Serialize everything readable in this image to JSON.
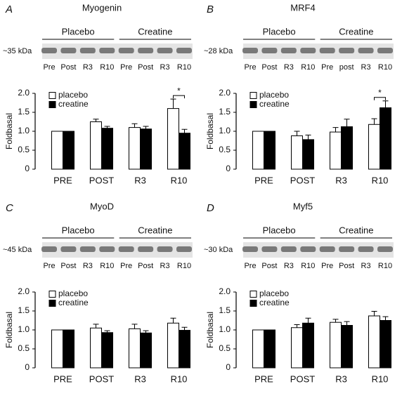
{
  "chart_data": [
    {
      "type": "bar",
      "panel_label": "A",
      "title": "Myogenin",
      "y_label": "Foldbasal",
      "blot": {
        "size_label": "~35 kDa",
        "groups": [
          "Placebo",
          "Creatine"
        ],
        "lanes": [
          "Pre",
          "Post",
          "R3",
          "R10",
          "Pre",
          "Post",
          "R3",
          "R10"
        ]
      },
      "categories": [
        "PRE",
        "POST",
        "R3",
        "R10"
      ],
      "series": [
        {
          "name": "placebo",
          "color": "#ffffff",
          "values": [
            1.0,
            1.25,
            1.1,
            1.6
          ],
          "errors": [
            0,
            0.07,
            0.1,
            0.25
          ]
        },
        {
          "name": "creatine",
          "color": "#000000",
          "values": [
            1.0,
            1.08,
            1.06,
            0.95
          ],
          "errors": [
            0,
            0.05,
            0.07,
            0.1
          ]
        }
      ],
      "ylim": [
        0,
        2
      ],
      "yticks": [
        0,
        0.5,
        {
          "value": 1,
          "label": "1.0"
        },
        1.5,
        {
          "value": 2,
          "label": "2.0"
        }
      ],
      "annotations": [
        {
          "text": "*",
          "category": "R10"
        }
      ]
    },
    {
      "type": "bar",
      "panel_label": "B",
      "title": "MRF4",
      "y_label": "Foldbasal",
      "blot": {
        "size_label": "~28 kDa",
        "groups": [
          "Placebo",
          "Creatine"
        ],
        "lanes": [
          "Pre",
          "Post",
          "R3",
          "R10",
          "Pre",
          "post",
          "R3",
          "R10"
        ]
      },
      "categories": [
        "PRE",
        "POST",
        "R3",
        "R10"
      ],
      "series": [
        {
          "name": "placebo",
          "color": "#ffffff",
          "values": [
            1.0,
            0.88,
            0.98,
            1.18
          ],
          "errors": [
            0,
            0.12,
            0.12,
            0.15
          ]
        },
        {
          "name": "creatine",
          "color": "#000000",
          "values": [
            1.0,
            0.78,
            1.12,
            1.62
          ],
          "errors": [
            0,
            0.12,
            0.2,
            0.18
          ]
        }
      ],
      "ylim": [
        0,
        2
      ],
      "yticks": [
        0,
        0.5,
        {
          "value": 1,
          "label": "1.0"
        },
        1.5,
        {
          "value": 2,
          "label": "2.0"
        }
      ],
      "annotations": [
        {
          "text": "*",
          "category": "R10"
        }
      ]
    },
    {
      "type": "bar",
      "panel_label": "C",
      "title": "MyoD",
      "y_label": "Foldbasal",
      "blot": {
        "size_label": "~45 kDa",
        "groups": [
          "Placebo",
          "Creatine"
        ],
        "lanes": [
          "Pre",
          "Post",
          "R3",
          "R10",
          "Pre",
          "Post",
          "R3",
          "R10"
        ]
      },
      "categories": [
        "PRE",
        "POST",
        "R3",
        "R10"
      ],
      "series": [
        {
          "name": "placebo",
          "color": "#ffffff",
          "values": [
            1.0,
            1.05,
            1.03,
            1.18
          ],
          "errors": [
            0,
            0.1,
            0.12,
            0.13
          ]
        },
        {
          "name": "creatine",
          "color": "#000000",
          "values": [
            1.0,
            0.93,
            0.92,
            0.99
          ],
          "errors": [
            0,
            0.05,
            0.06,
            0.08
          ]
        }
      ],
      "ylim": [
        0,
        2
      ],
      "yticks": [
        0,
        0.5,
        {
          "value": 1,
          "label": "1.0"
        },
        1.5,
        {
          "value": 2,
          "label": "2.0"
        }
      ]
    },
    {
      "type": "bar",
      "panel_label": "D",
      "title": "Myf5",
      "y_label": "Foldbasal",
      "blot": {
        "size_label": "~30 kDa",
        "groups": [
          "Placebo",
          "Creatine"
        ],
        "lanes": [
          "Pre",
          "Post",
          "R3",
          "R10",
          "Pre",
          "Post",
          "R3",
          "R10"
        ]
      },
      "categories": [
        "PRE",
        "POST",
        "R3",
        "R10"
      ],
      "series": [
        {
          "name": "placebo",
          "color": "#ffffff",
          "values": [
            1.0,
            1.06,
            1.2,
            1.37
          ],
          "errors": [
            0,
            0.08,
            0.08,
            0.12
          ]
        },
        {
          "name": "creatine",
          "color": "#000000",
          "values": [
            1.0,
            1.18,
            1.12,
            1.25
          ],
          "errors": [
            0,
            0.13,
            0.1,
            0.1
          ]
        }
      ],
      "ylim": [
        0,
        2
      ],
      "yticks": [
        0,
        0.5,
        {
          "value": 1,
          "label": "1.0"
        },
        1.5,
        {
          "value": 2,
          "label": "2.0"
        }
      ]
    }
  ]
}
